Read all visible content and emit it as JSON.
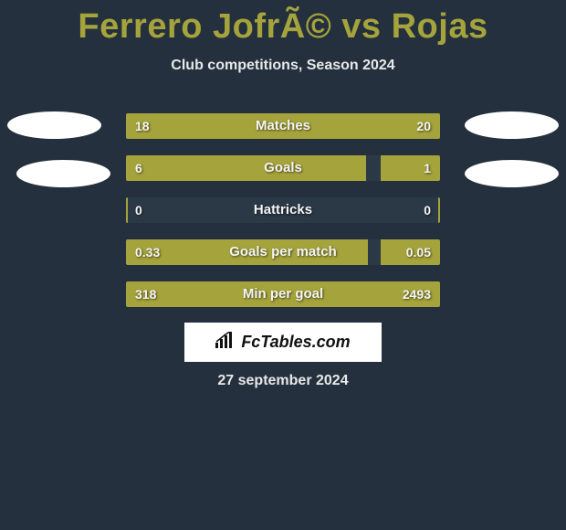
{
  "title": "Ferrero JofrÃ© vs Rojas",
  "subtitle": "Club competitions, Season 2024",
  "date": "27 september 2024",
  "logo_text": "FcTables.com",
  "colors": {
    "left_bar": "#a5a33b",
    "right_bar": "#a5a33b",
    "bg_bar": "#2b3947",
    "title_color": "#a5a33b"
  },
  "stats": [
    {
      "label": "Matches",
      "left_val": "18",
      "right_val": "20",
      "left_pct": 47.4,
      "right_pct": 52.6
    },
    {
      "label": "Goals",
      "left_val": "6",
      "right_val": "1",
      "left_pct": 76.5,
      "right_pct": 19.0
    },
    {
      "label": "Hattricks",
      "left_val": "0",
      "right_val": "0",
      "left_pct": 0.5,
      "right_pct": 0.5
    },
    {
      "label": "Goals per match",
      "left_val": "0.33",
      "right_val": "0.05",
      "left_pct": 77.0,
      "right_pct": 19.0
    },
    {
      "label": "Min per goal",
      "left_val": "318",
      "right_val": "2493",
      "left_pct": 11.3,
      "right_pct": 88.7
    }
  ]
}
